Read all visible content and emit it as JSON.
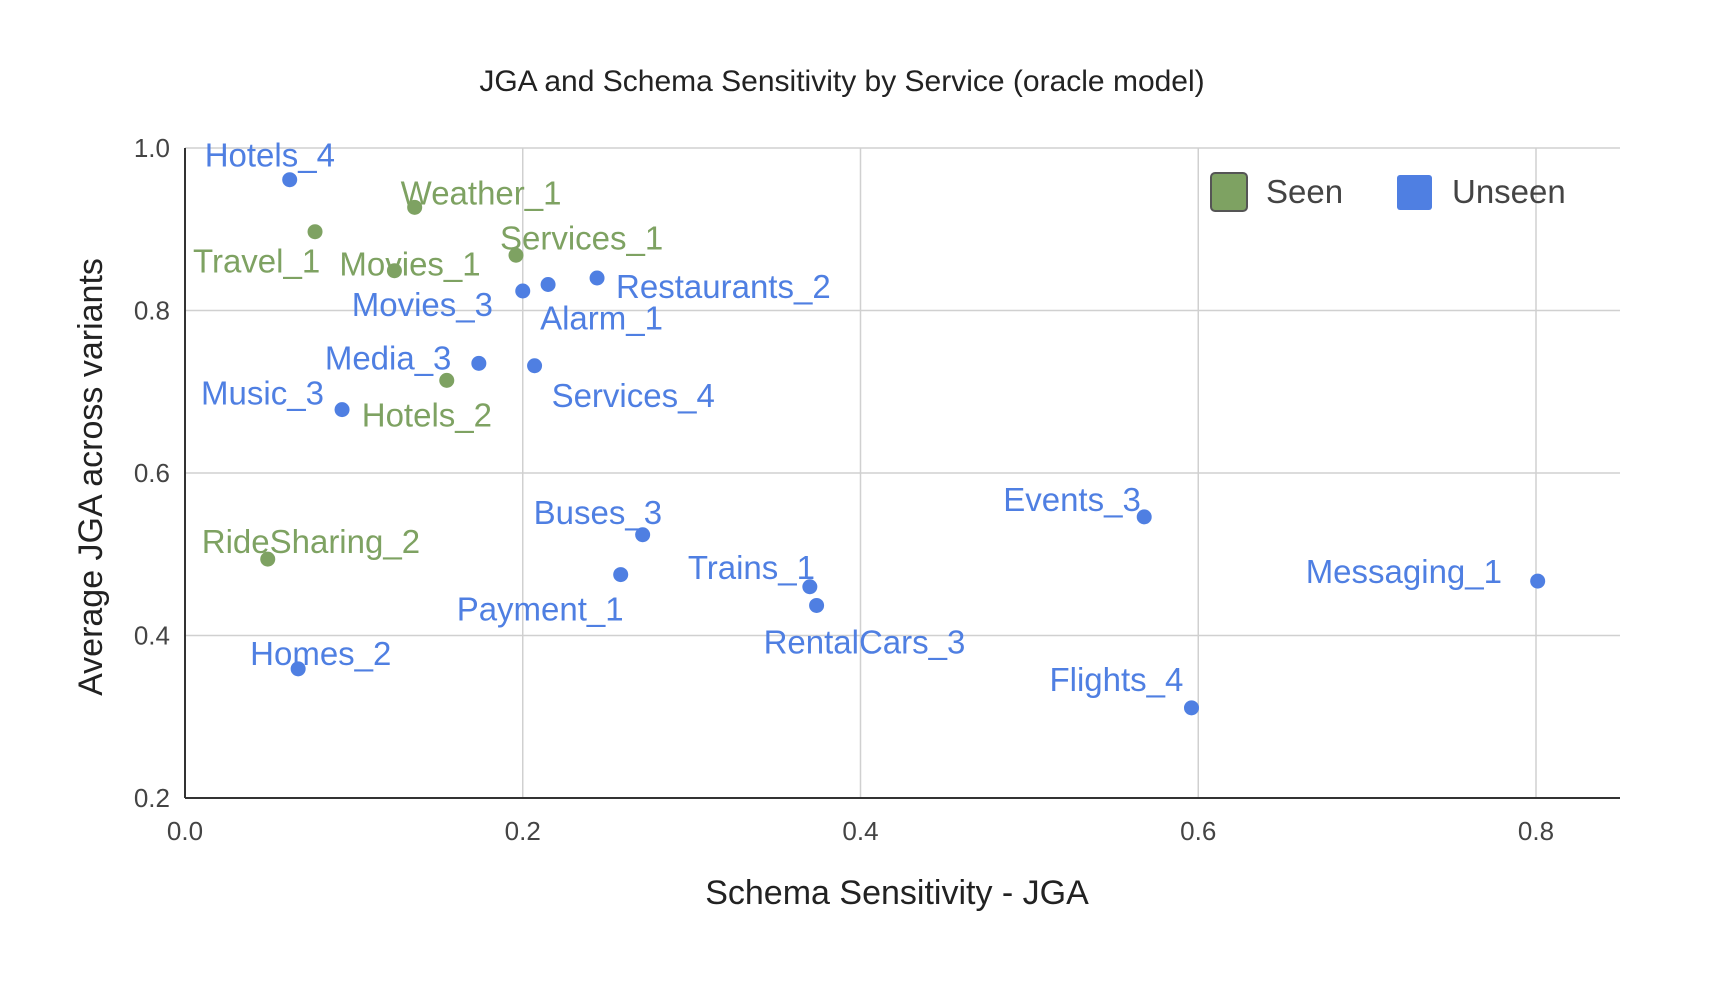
{
  "chart_data": {
    "type": "scatter",
    "title": "JGA and Schema Sensitivity by Service (oracle model)",
    "xlabel": "Schema Sensitivity - JGA",
    "ylabel": "Average JGA across variants",
    "xlim": [
      0.0,
      0.82
    ],
    "ylim": [
      0.2,
      1.0
    ],
    "x_ticks": [
      "0.0",
      "0.2",
      "0.4",
      "0.6",
      "0.8"
    ],
    "y_ticks": [
      "0.2",
      "0.4",
      "0.6",
      "0.8",
      "1.0"
    ],
    "grid": true,
    "legend": {
      "position": "top-right",
      "entries": [
        "Seen",
        "Unseen"
      ]
    },
    "colors": {
      "Seen": "#7ea262",
      "Unseen": "#4f7fe2"
    },
    "series": [
      {
        "name": "Seen",
        "points": [
          {
            "label": "Weather_1",
            "x": 0.136,
            "y": 0.927
          },
          {
            "label": "Travel_1",
            "x": 0.077,
            "y": 0.897
          },
          {
            "label": "Movies_1",
            "x": 0.124,
            "y": 0.849
          },
          {
            "label": "Services_1",
            "x": 0.196,
            "y": 0.868
          },
          {
            "label": "Hotels_2",
            "x": 0.155,
            "y": 0.714
          },
          {
            "label": "RideSharing_2",
            "x": 0.049,
            "y": 0.494
          }
        ]
      },
      {
        "name": "Unseen",
        "points": [
          {
            "label": "Hotels_4",
            "x": 0.062,
            "y": 0.961
          },
          {
            "label": "Restaurants_2",
            "x": 0.244,
            "y": 0.84
          },
          {
            "label": "Movies_3",
            "x": 0.2,
            "y": 0.824
          },
          {
            "label": "Alarm_1",
            "x": 0.215,
            "y": 0.832
          },
          {
            "label": "Media_3",
            "x": 0.174,
            "y": 0.735
          },
          {
            "label": "Services_4",
            "x": 0.207,
            "y": 0.732
          },
          {
            "label": "Music_3",
            "x": 0.093,
            "y": 0.678
          },
          {
            "label": "Buses_3",
            "x": 0.271,
            "y": 0.524
          },
          {
            "label": "Payment_1",
            "x": 0.258,
            "y": 0.475
          },
          {
            "label": "Trains_1",
            "x": 0.37,
            "y": 0.46
          },
          {
            "label": "RentalCars_3",
            "x": 0.374,
            "y": 0.437
          },
          {
            "label": "Events_3",
            "x": 0.568,
            "y": 0.546
          },
          {
            "label": "Messaging_1",
            "x": 0.801,
            "y": 0.467
          },
          {
            "label": "Homes_2",
            "x": 0.067,
            "y": 0.359
          },
          {
            "label": "Flights_4",
            "x": 0.596,
            "y": 0.311
          }
        ]
      }
    ]
  }
}
